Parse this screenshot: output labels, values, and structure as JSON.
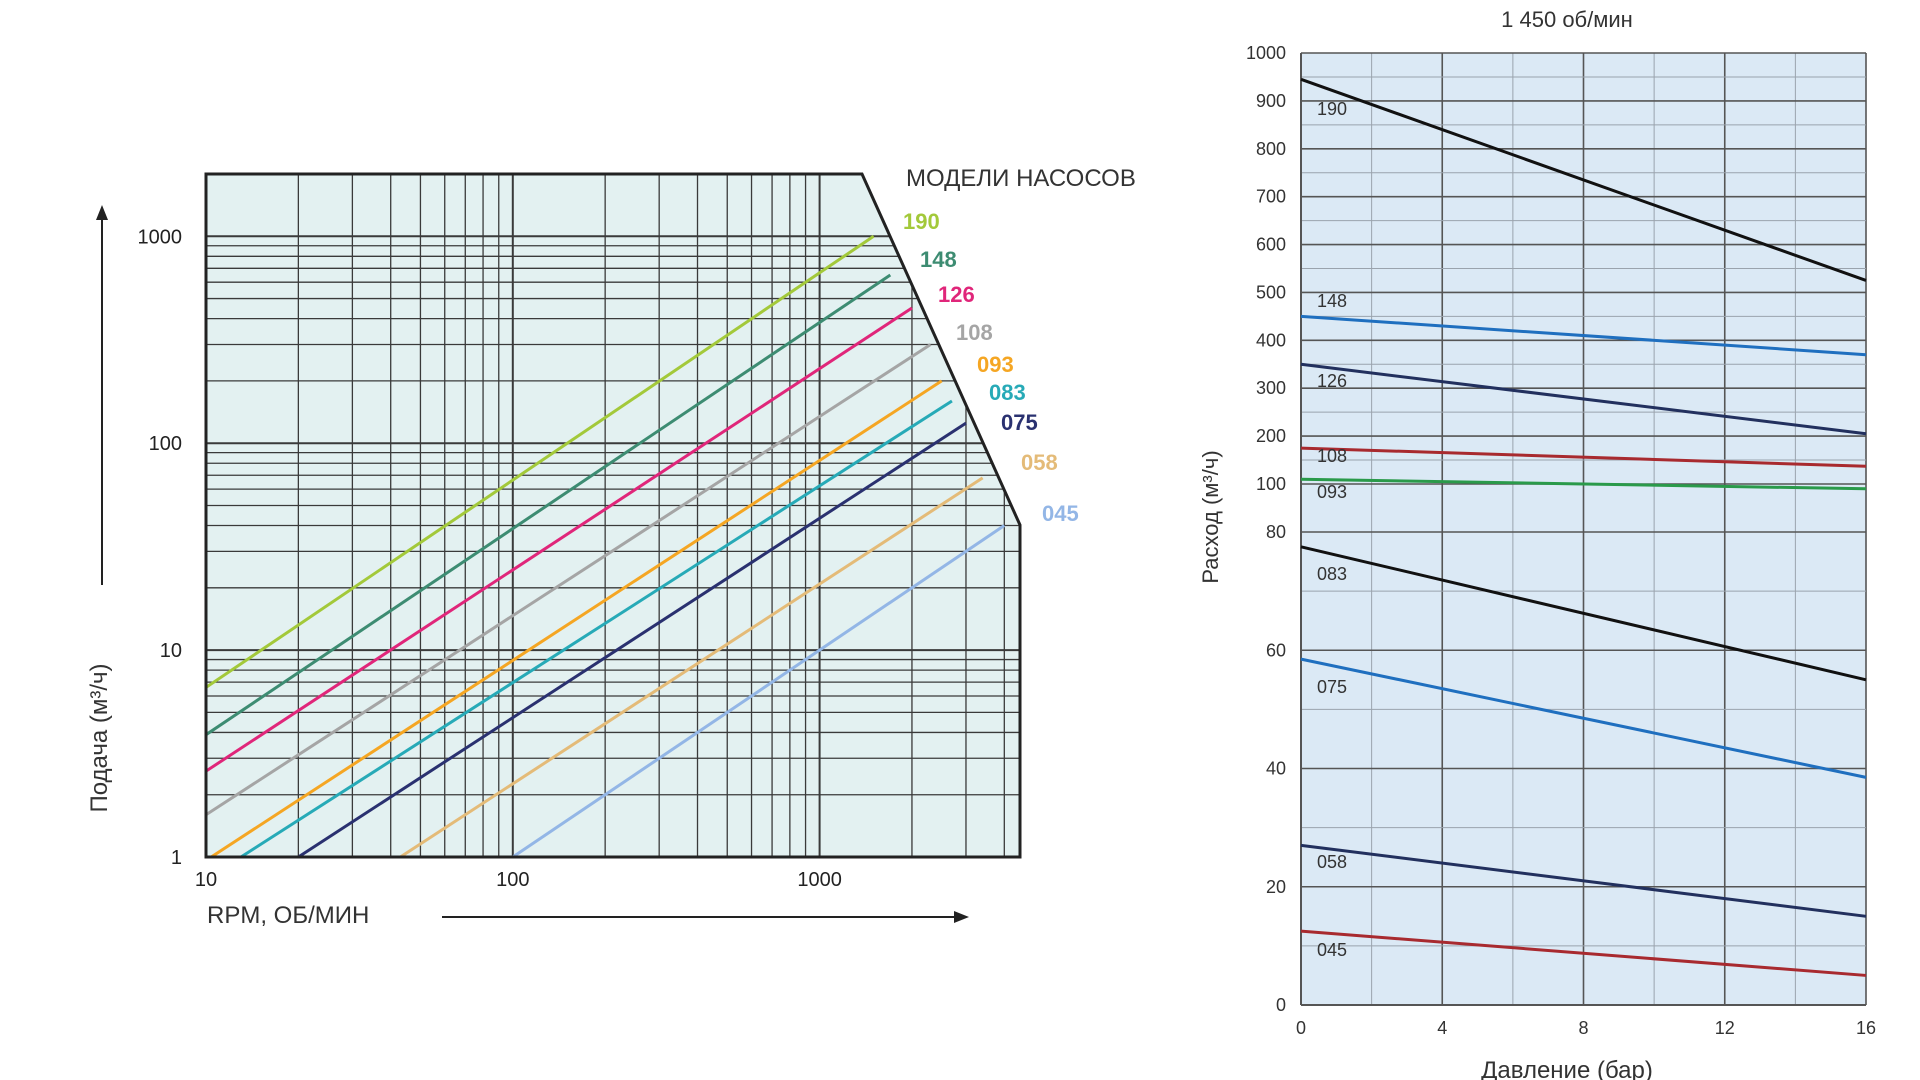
{
  "chart_data": [
    {
      "type": "line",
      "title": "",
      "legend_title": "МОДЕЛИ НАСОСОВ",
      "xlabel": "RPM, ОБ/МИН",
      "ylabel": "Подача (м³/ч)",
      "x_scale": "log",
      "y_scale": "log",
      "xlim": [
        10,
        4500
      ],
      "ylim": [
        1,
        2000
      ],
      "x_ticks": [
        {
          "value": 10,
          "label": "10"
        },
        {
          "value": 100,
          "label": "100"
        },
        {
          "value": 1000,
          "label": "1000"
        }
      ],
      "y_ticks": [
        {
          "value": 1,
          "label": "1"
        },
        {
          "value": 10,
          "label": "10"
        },
        {
          "value": 100,
          "label": "100"
        },
        {
          "value": 1000,
          "label": "1000"
        }
      ],
      "grid": true,
      "legend_position": "right, labels at line ends",
      "series": [
        {
          "name": "190",
          "color": "#a3c93a",
          "x": [
            10,
            1500
          ],
          "y": [
            6.6,
            1000
          ]
        },
        {
          "name": "148",
          "color": "#3d8c72",
          "x": [
            10,
            1700
          ],
          "y": [
            3.9,
            650
          ]
        },
        {
          "name": "126",
          "color": "#e0267a",
          "x": [
            10,
            2000
          ],
          "y": [
            2.6,
            450
          ]
        },
        {
          "name": "108",
          "color": "#a5a5a5",
          "x": [
            10,
            2300
          ],
          "y": [
            1.6,
            300
          ]
        },
        {
          "name": "093",
          "color": "#f5a623",
          "x": [
            10.4,
            2500
          ],
          "y": [
            1,
            200
          ]
        },
        {
          "name": "083",
          "color": "#27aab7",
          "x": [
            13,
            2700
          ],
          "y": [
            1,
            160
          ]
        },
        {
          "name": "075",
          "color": "#2a3170",
          "x": [
            20,
            3000
          ],
          "y": [
            1,
            125
          ]
        },
        {
          "name": "058",
          "color": "#e4bb78",
          "x": [
            43,
            3400
          ],
          "y": [
            1,
            68
          ]
        },
        {
          "name": "045",
          "color": "#93b6e6",
          "x": [
            100,
            4000
          ],
          "y": [
            1,
            40
          ]
        }
      ]
    },
    {
      "type": "line",
      "title": "1 450 об/мин",
      "xlabel": "Давление (бар)",
      "ylabel": "Расход (м³/ч)",
      "xlim": [
        0,
        16
      ],
      "x_ticks": [
        "0",
        "4",
        "8",
        "12",
        "16"
      ],
      "y_ticks_upper": [
        "100",
        "200",
        "300",
        "400",
        "500",
        "600",
        "700",
        "800",
        "900",
        "1000"
      ],
      "y_ticks_lower": [
        "0",
        "20",
        "40",
        "60",
        "80"
      ],
      "y_scale": "piecewise: 0–80 linear, 80–100 compressed, 100–1000 linear",
      "grid": true,
      "legend_position": "inline labels near left axis",
      "series": [
        {
          "name": "190",
          "color": "#111111",
          "x": [
            0,
            16
          ],
          "y": [
            945,
            525
          ]
        },
        {
          "name": "148",
          "color": "#1f6fbf",
          "x": [
            0,
            16
          ],
          "y": [
            450,
            370
          ]
        },
        {
          "name": "126",
          "color": "#22305e",
          "x": [
            0,
            16
          ],
          "y": [
            350,
            205
          ]
        },
        {
          "name": "108",
          "color": "#a82a2f",
          "x": [
            0,
            16
          ],
          "y": [
            175,
            137
          ]
        },
        {
          "name": "093",
          "color": "#2a9a4a",
          "x": [
            0,
            16
          ],
          "y": [
            110,
            98
          ]
        },
        {
          "name": "083",
          "color": "#111111",
          "x": [
            0,
            16
          ],
          "y": [
            77.5,
            55
          ]
        },
        {
          "name": "075",
          "color": "#1f6fbf",
          "x": [
            0,
            16
          ],
          "y": [
            58.5,
            38.5
          ]
        },
        {
          "name": "058",
          "color": "#22305e",
          "x": [
            0,
            16
          ],
          "y": [
            27,
            15
          ]
        },
        {
          "name": "045",
          "color": "#a82a2f",
          "x": [
            0,
            16
          ],
          "y": [
            12.5,
            5
          ]
        }
      ]
    }
  ]
}
